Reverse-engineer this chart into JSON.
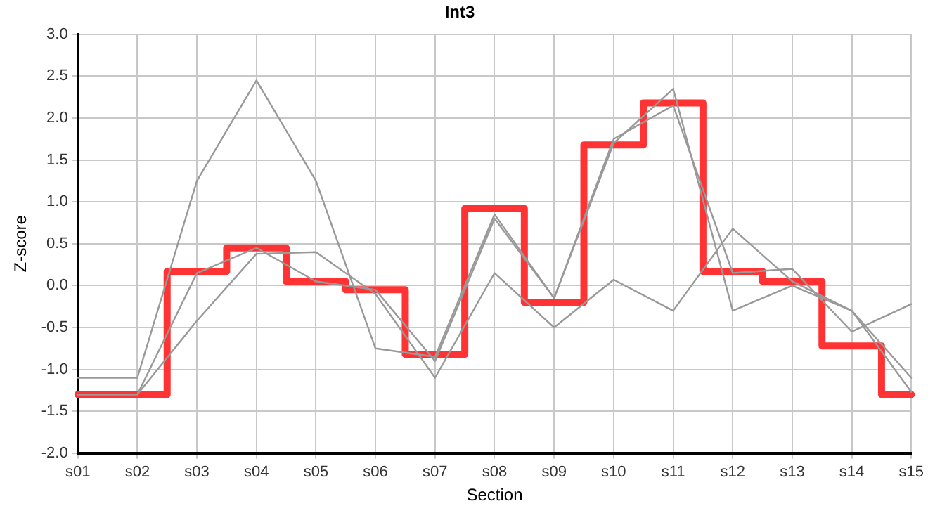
{
  "chart_data": {
    "type": "line",
    "title": "Int3",
    "xlabel": "Section",
    "ylabel": "Z-score",
    "categories": [
      "s01",
      "s02",
      "s03",
      "s04",
      "s05",
      "s06",
      "s07",
      "s08",
      "s09",
      "s10",
      "s11",
      "s12",
      "s13",
      "s14",
      "s15"
    ],
    "series": [
      {
        "color": "#999999",
        "values": [
          -1.1,
          -1.1,
          1.25,
          2.45,
          1.25,
          -0.75,
          -0.85,
          0.85,
          -0.15,
          1.7,
          2.35,
          -0.3,
          0.0,
          -0.3,
          -1.1
        ]
      },
      {
        "color": "#999999",
        "values": [
          -1.3,
          -1.3,
          0.15,
          0.45,
          0.05,
          -0.05,
          -0.9,
          0.8,
          -0.15,
          1.75,
          2.15,
          0.15,
          0.2,
          -0.55,
          -0.22
        ]
      },
      {
        "color": "#999999",
        "values": [
          -1.3,
          -1.3,
          -0.42,
          0.38,
          0.4,
          -0.1,
          -1.1,
          0.15,
          -0.5,
          0.07,
          -0.3,
          0.68,
          0.05,
          -0.3,
          -1.27
        ]
      },
      {
        "type": "step",
        "color": "#ff3333",
        "values": [
          -1.3,
          -1.3,
          0.17,
          0.45,
          0.05,
          -0.05,
          -0.82,
          0.92,
          -0.2,
          1.68,
          2.18,
          0.17,
          0.05,
          -0.72,
          -1.3
        ]
      }
    ],
    "ylim": [
      -2,
      3
    ],
    "yticks": [
      {
        "value": -2,
        "label": "-2.0"
      },
      {
        "value": -1.5,
        "label": "-1.5"
      },
      {
        "value": -1,
        "label": "-1.0"
      },
      {
        "value": -0.5,
        "label": "-0.5"
      },
      {
        "value": 0,
        "label": "0.0"
      },
      {
        "value": 0.5,
        "label": "0.5"
      },
      {
        "value": 1,
        "label": "1.0"
      },
      {
        "value": 1.5,
        "label": "1.5"
      },
      {
        "value": 2,
        "label": "2.0"
      },
      {
        "value": 2.5,
        "label": "2.5"
      },
      {
        "value": 3,
        "label": "3.0"
      }
    ],
    "grid": true,
    "legend": false,
    "marker": "none",
    "line_style": "solid"
  }
}
